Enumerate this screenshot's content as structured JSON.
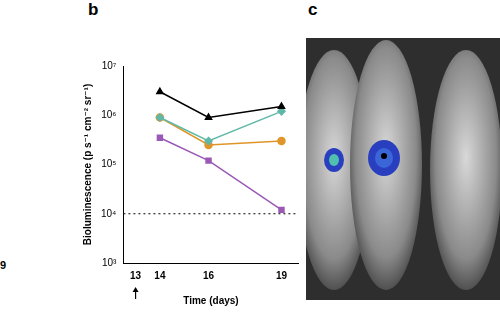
{
  "chart_data": {
    "type": "line",
    "title": "b",
    "x_label": "Time (days)",
    "y_label": "Bioluminescence (p s⁻¹ cm⁻² sr⁻¹)",
    "x": [
      14,
      16,
      19
    ],
    "series": [
      {
        "color": "#000000",
        "marker": "triangle",
        "values": [
          3000000,
          900000,
          1500000
        ]
      },
      {
        "color": "#9b59b6",
        "marker": "square",
        "values": [
          350000,
          120000,
          12000
        ]
      },
      {
        "color": "#5fb8a8",
        "marker": "diamond",
        "values": [
          900000,
          300000,
          1200000
        ]
      },
      {
        "color": "#e0952a",
        "marker": "circle",
        "values": [
          900000,
          250000,
          300000
        ]
      }
    ],
    "xlim": [
      12.5,
      19.7
    ],
    "xticks": [
      13,
      14,
      16,
      19
    ],
    "ylim": [
      1000,
      10000000
    ],
    "yticks": [
      {
        "value": 1000,
        "label": "10³"
      },
      {
        "value": 10000,
        "label": "10⁴"
      },
      {
        "value": 100000,
        "label": "10⁵"
      },
      {
        "value": 1000000,
        "label": "10⁶"
      },
      {
        "value": 10000000,
        "label": "10⁷"
      }
    ],
    "log": "y",
    "grid": false,
    "annotations": [
      {
        "type": "hline",
        "y": 10000,
        "line_style": "dotted"
      },
      {
        "type": "arrow",
        "x": 13
      }
    ]
  },
  "figure_texts": {
    "left_fragment": "9",
    "panel_c": "c"
  }
}
